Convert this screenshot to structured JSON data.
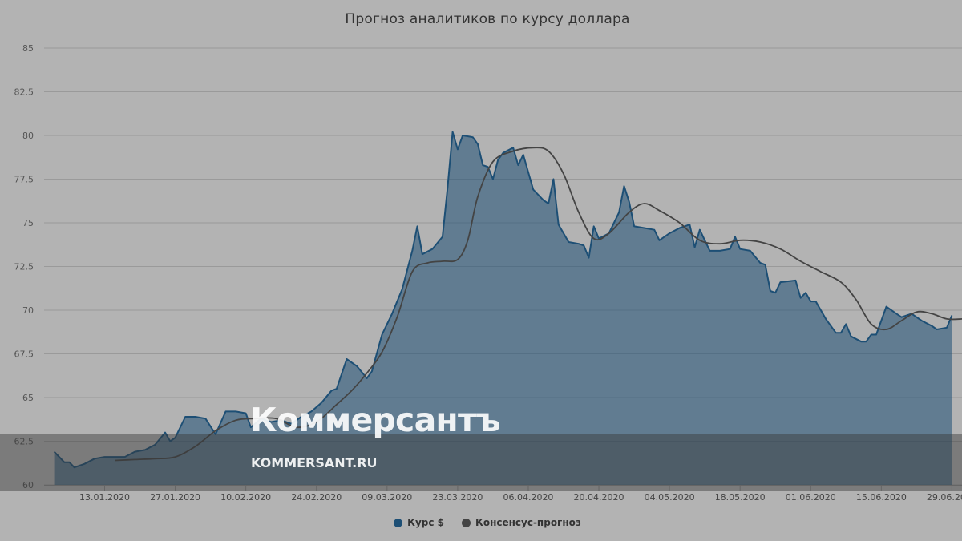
{
  "chart_data": {
    "type": "area",
    "title": "Прогноз аналитиков по курсу доллара",
    "xlabel": "",
    "ylabel": "",
    "ylim": [
      60,
      85
    ],
    "y_ticks": [
      "60",
      "62.5",
      "65",
      "67.5",
      "70",
      "72.5",
      "75",
      "77.5",
      "80",
      "82.5",
      "85"
    ],
    "x_range": [
      "2020-01-01",
      "2020-07-01"
    ],
    "x_ticks": [
      "13.01.2020",
      "27.01.2020",
      "10.02.2020",
      "24.02.2020",
      "09.03.2020",
      "23.03.2020",
      "06.04.2020",
      "20.04.2020",
      "04.05.2020",
      "18.05.2020",
      "01.06.2020",
      "15.06.2020",
      "29.06.2020"
    ],
    "grid": true,
    "legend_position": "bottom-center",
    "series": [
      {
        "name": "Курс $",
        "style": "area",
        "color": "#1d4f75",
        "points": [
          [
            "2020-01-03",
            61.9
          ],
          [
            "2020-01-05",
            61.3
          ],
          [
            "2020-01-06",
            61.3
          ],
          [
            "2020-01-07",
            61.0
          ],
          [
            "2020-01-09",
            61.2
          ],
          [
            "2020-01-11",
            61.5
          ],
          [
            "2020-01-13",
            61.6
          ],
          [
            "2020-01-14",
            61.6
          ],
          [
            "2020-01-17",
            61.6
          ],
          [
            "2020-01-19",
            61.9
          ],
          [
            "2020-01-21",
            62.0
          ],
          [
            "2020-01-23",
            62.3
          ],
          [
            "2020-01-25",
            63.0
          ],
          [
            "2020-01-26",
            62.5
          ],
          [
            "2020-01-27",
            62.7
          ],
          [
            "2020-01-29",
            63.9
          ],
          [
            "2020-01-31",
            63.9
          ],
          [
            "2020-02-02",
            63.8
          ],
          [
            "2020-02-04",
            62.9
          ],
          [
            "2020-02-06",
            64.2
          ],
          [
            "2020-02-08",
            64.2
          ],
          [
            "2020-02-10",
            64.1
          ],
          [
            "2020-02-11",
            63.3
          ],
          [
            "2020-02-13",
            63.8
          ],
          [
            "2020-02-15",
            63.6
          ],
          [
            "2020-02-17",
            63.7
          ],
          [
            "2020-02-19",
            63.5
          ],
          [
            "2020-02-21",
            63.9
          ],
          [
            "2020-02-23",
            64.2
          ],
          [
            "2020-02-25",
            64.7
          ],
          [
            "2020-02-27",
            65.4
          ],
          [
            "2020-02-28",
            65.5
          ],
          [
            "2020-03-01",
            67.2
          ],
          [
            "2020-03-03",
            66.8
          ],
          [
            "2020-03-05",
            66.1
          ],
          [
            "2020-03-06",
            66.5
          ],
          [
            "2020-03-08",
            68.6
          ],
          [
            "2020-03-10",
            69.8
          ],
          [
            "2020-03-12",
            71.2
          ],
          [
            "2020-03-14",
            73.4
          ],
          [
            "2020-03-15",
            74.8
          ],
          [
            "2020-03-16",
            73.2
          ],
          [
            "2020-03-18",
            73.5
          ],
          [
            "2020-03-20",
            74.2
          ],
          [
            "2020-03-21",
            77.0
          ],
          [
            "2020-03-22",
            80.2
          ],
          [
            "2020-03-23",
            79.2
          ],
          [
            "2020-03-24",
            80.0
          ],
          [
            "2020-03-26",
            79.9
          ],
          [
            "2020-03-27",
            79.5
          ],
          [
            "2020-03-28",
            78.3
          ],
          [
            "2020-03-29",
            78.2
          ],
          [
            "2020-03-30",
            77.5
          ],
          [
            "2020-03-31",
            78.6
          ],
          [
            "2020-04-01",
            79.0
          ],
          [
            "2020-04-03",
            79.3
          ],
          [
            "2020-04-04",
            78.3
          ],
          [
            "2020-04-05",
            78.9
          ],
          [
            "2020-04-07",
            76.9
          ],
          [
            "2020-04-09",
            76.3
          ],
          [
            "2020-04-10",
            76.1
          ],
          [
            "2020-04-11",
            77.5
          ],
          [
            "2020-04-12",
            74.9
          ],
          [
            "2020-04-14",
            73.9
          ],
          [
            "2020-04-16",
            73.8
          ],
          [
            "2020-04-17",
            73.7
          ],
          [
            "2020-04-18",
            73.0
          ],
          [
            "2020-04-19",
            74.8
          ],
          [
            "2020-04-20",
            74.1
          ],
          [
            "2020-04-22",
            74.4
          ],
          [
            "2020-04-24",
            75.6
          ],
          [
            "2020-04-25",
            77.1
          ],
          [
            "2020-04-26",
            76.2
          ],
          [
            "2020-04-27",
            74.8
          ],
          [
            "2020-04-29",
            74.7
          ],
          [
            "2020-05-01",
            74.6
          ],
          [
            "2020-05-02",
            74.0
          ],
          [
            "2020-05-04",
            74.4
          ],
          [
            "2020-05-06",
            74.7
          ],
          [
            "2020-05-08",
            74.9
          ],
          [
            "2020-05-09",
            73.6
          ],
          [
            "2020-05-10",
            74.6
          ],
          [
            "2020-05-12",
            73.4
          ],
          [
            "2020-05-14",
            73.4
          ],
          [
            "2020-05-16",
            73.5
          ],
          [
            "2020-05-17",
            74.2
          ],
          [
            "2020-05-18",
            73.5
          ],
          [
            "2020-05-20",
            73.4
          ],
          [
            "2020-05-22",
            72.7
          ],
          [
            "2020-05-23",
            72.6
          ],
          [
            "2020-05-24",
            71.1
          ],
          [
            "2020-05-25",
            71.0
          ],
          [
            "2020-05-26",
            71.6
          ],
          [
            "2020-05-29",
            71.7
          ],
          [
            "2020-05-30",
            70.7
          ],
          [
            "2020-05-31",
            71.0
          ],
          [
            "2020-06-01",
            70.5
          ],
          [
            "2020-06-02",
            70.5
          ],
          [
            "2020-06-04",
            69.5
          ],
          [
            "2020-06-06",
            68.7
          ],
          [
            "2020-06-07",
            68.7
          ],
          [
            "2020-06-08",
            69.2
          ],
          [
            "2020-06-09",
            68.5
          ],
          [
            "2020-06-11",
            68.2
          ],
          [
            "2020-06-12",
            68.2
          ],
          [
            "2020-06-13",
            68.6
          ],
          [
            "2020-06-14",
            68.6
          ],
          [
            "2020-06-16",
            70.2
          ],
          [
            "2020-06-18",
            69.8
          ],
          [
            "2020-06-19",
            69.6
          ],
          [
            "2020-06-21",
            69.8
          ],
          [
            "2020-06-23",
            69.4
          ],
          [
            "2020-06-25",
            69.1
          ],
          [
            "2020-06-26",
            68.9
          ],
          [
            "2020-06-28",
            69.0
          ],
          [
            "2020-06-29",
            69.7
          ]
        ]
      },
      {
        "name": "Консенсус-прогноз",
        "style": "line",
        "color": "#444444",
        "points": [
          [
            "2020-01-15",
            61.4
          ],
          [
            "2020-01-19",
            61.45
          ],
          [
            "2020-01-23",
            61.5
          ],
          [
            "2020-01-27",
            61.6
          ],
          [
            "2020-01-31",
            62.2
          ],
          [
            "2020-02-04",
            63.1
          ],
          [
            "2020-02-08",
            63.7
          ],
          [
            "2020-02-12",
            63.8
          ],
          [
            "2020-02-16",
            63.8
          ],
          [
            "2020-02-20",
            63.3
          ],
          [
            "2020-02-24",
            63.6
          ],
          [
            "2020-02-28",
            64.6
          ],
          [
            "2020-03-02",
            65.4
          ],
          [
            "2020-03-05",
            66.4
          ],
          [
            "2020-03-08",
            67.6
          ],
          [
            "2020-03-11",
            69.6
          ],
          [
            "2020-03-14",
            72.2
          ],
          [
            "2020-03-17",
            72.7
          ],
          [
            "2020-03-20",
            72.8
          ],
          [
            "2020-03-23",
            72.9
          ],
          [
            "2020-03-25",
            74.0
          ],
          [
            "2020-03-27",
            76.5
          ],
          [
            "2020-03-30",
            78.5
          ],
          [
            "2020-04-03",
            79.1
          ],
          [
            "2020-04-07",
            79.3
          ],
          [
            "2020-04-10",
            79.1
          ],
          [
            "2020-04-13",
            77.8
          ],
          [
            "2020-04-16",
            75.6
          ],
          [
            "2020-04-19",
            74.1
          ],
          [
            "2020-04-22",
            74.4
          ],
          [
            "2020-04-26",
            75.6
          ],
          [
            "2020-04-29",
            76.1
          ],
          [
            "2020-05-02",
            75.7
          ],
          [
            "2020-05-06",
            75.0
          ],
          [
            "2020-05-10",
            74.0
          ],
          [
            "2020-05-14",
            73.8
          ],
          [
            "2020-05-18",
            74.0
          ],
          [
            "2020-05-22",
            73.9
          ],
          [
            "2020-05-26",
            73.5
          ],
          [
            "2020-05-30",
            72.8
          ],
          [
            "2020-06-03",
            72.2
          ],
          [
            "2020-06-07",
            71.6
          ],
          [
            "2020-06-10",
            70.6
          ],
          [
            "2020-06-13",
            69.2
          ],
          [
            "2020-06-16",
            68.9
          ],
          [
            "2020-06-19",
            69.4
          ],
          [
            "2020-06-22",
            69.9
          ],
          [
            "2020-06-25",
            69.8
          ],
          [
            "2020-06-28",
            69.5
          ],
          [
            "2020-07-01",
            69.5
          ],
          [
            "2020-07-04",
            69.6
          ],
          [
            "2020-07-07",
            69.8
          ]
        ]
      }
    ]
  },
  "watermark": {
    "brand": "Коммерсантъ",
    "url": "KOMMERSANT.RU"
  }
}
